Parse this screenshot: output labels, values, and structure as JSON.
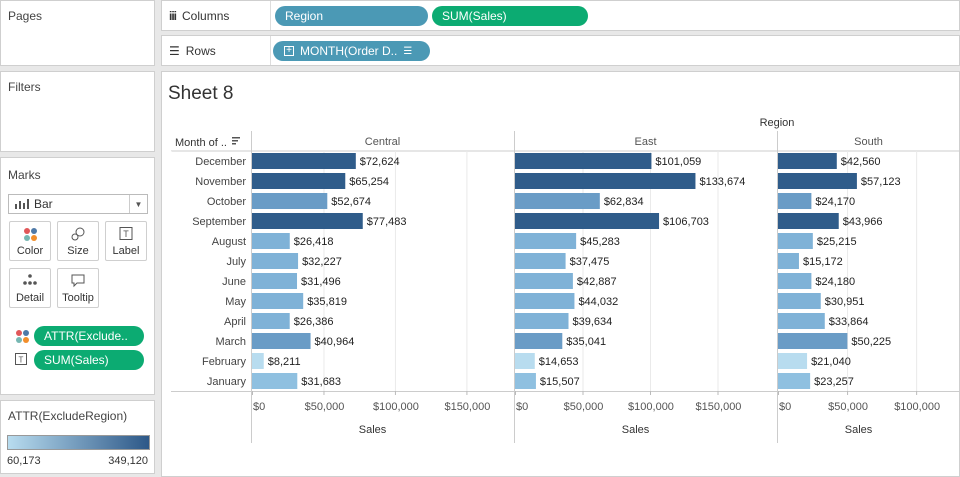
{
  "pages_panel": {
    "title": "Pages"
  },
  "filters_panel": {
    "title": "Filters"
  },
  "marks_panel": {
    "title": "Marks",
    "mark_type": "Bar",
    "buttons": {
      "color": "Color",
      "size": "Size",
      "label": "Label",
      "detail": "Detail",
      "tooltip": "Tooltip"
    },
    "fields": {
      "color_field": "ATTR(Exclude..",
      "label_field": "SUM(Sales)"
    }
  },
  "legend": {
    "title": "ATTR(ExcludeRegion)",
    "min": "60,173",
    "max": "349,120",
    "color_low": "#b8dcef",
    "color_high": "#2d5888"
  },
  "shelves": {
    "columns_label": "Columns",
    "rows_label": "Rows",
    "columns_pills": [
      "Region",
      "SUM(Sales)"
    ],
    "rows_pill": "MONTH(Order D.."
  },
  "sheet": {
    "title": "Sheet 8",
    "row_header": "Month of .."
  },
  "chart_data": {
    "type": "bar",
    "orientation": "horizontal",
    "header": "Region",
    "categories": [
      "December",
      "November",
      "October",
      "September",
      "August",
      "July",
      "June",
      "May",
      "April",
      "March",
      "February",
      "January"
    ],
    "panels": [
      {
        "name": "Central",
        "values": [
          72624,
          65254,
          52674,
          77483,
          26418,
          32227,
          31496,
          35819,
          26386,
          40964,
          8211,
          31683
        ],
        "labels": [
          "$72,624",
          "$65,254",
          "$52,674",
          "$77,483",
          "$26,418",
          "$32,227",
          "$31,496",
          "$35,819",
          "$26,386",
          "$40,964",
          "$8,211",
          "$31,683"
        ],
        "colors": [
          "#2f5c8a",
          "#2f5c8a",
          "#6a9cc6",
          "#2f5c8a",
          "#7fb2d7",
          "#7fb2d7",
          "#7fb2d7",
          "#7fb2d7",
          "#7fb2d7",
          "#6a9cc6",
          "#b8dcef",
          "#8fc0e0"
        ],
        "xlim": [
          0,
          170000
        ],
        "ticks": [
          0,
          50000,
          100000,
          150000
        ],
        "tick_labels": [
          "$0",
          "$50,000",
          "$100,000",
          "$150,000"
        ],
        "xlabel": "Sales"
      },
      {
        "name": "East",
        "values": [
          101059,
          133674,
          62834,
          106703,
          45283,
          37475,
          42887,
          44032,
          39634,
          35041,
          14653,
          15507
        ],
        "labels": [
          "$101,059",
          "$133,674",
          "$62,834",
          "$106,703",
          "$45,283",
          "$37,475",
          "$42,887",
          "$44,032",
          "$39,634",
          "$35,041",
          "$14,653",
          "$15,507"
        ],
        "colors": [
          "#2f5c8a",
          "#2f5c8a",
          "#6a9cc6",
          "#2f5c8a",
          "#7fb2d7",
          "#7fb2d7",
          "#7fb2d7",
          "#7fb2d7",
          "#7fb2d7",
          "#6a9cc6",
          "#b8dcef",
          "#8fc0e0"
        ],
        "xlim": [
          0,
          180000
        ],
        "ticks": [
          0,
          50000,
          100000,
          150000
        ],
        "tick_labels": [
          "$0",
          "$50,000",
          "$100,000",
          "$150,000"
        ],
        "xlabel": "Sales"
      },
      {
        "name": "South",
        "values": [
          42560,
          57123,
          24170,
          43966,
          25215,
          15172,
          24180,
          30951,
          33864,
          50225,
          21040,
          23257
        ],
        "labels": [
          "$42,560",
          "$57,123",
          "$24,170",
          "$43,966",
          "$25,215",
          "$15,172",
          "$24,180",
          "$30,951",
          "$33,864",
          "$50,225",
          "$21,040",
          "$23,257"
        ],
        "colors": [
          "#2f5c8a",
          "#2f5c8a",
          "#6a9cc6",
          "#2f5c8a",
          "#7fb2d7",
          "#7fb2d7",
          "#7fb2d7",
          "#7fb2d7",
          "#7fb2d7",
          "#6a9cc6",
          "#b8dcef",
          "#8fc0e0"
        ],
        "xlim": [
          0,
          118000
        ],
        "ticks": [
          0,
          50000,
          100000
        ],
        "tick_labels": [
          "$0",
          "$50,000",
          "$100,000"
        ],
        "xlabel": "Sales"
      }
    ]
  }
}
